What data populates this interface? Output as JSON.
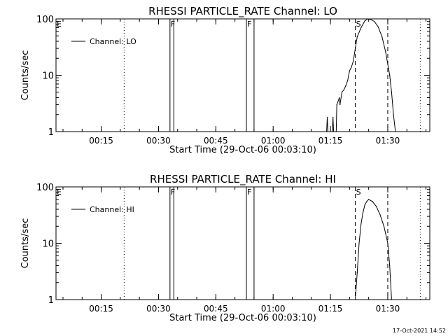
{
  "footer": {
    "timestamp": "17-Oct-2021 14:52"
  },
  "chart_data": [
    {
      "type": "line",
      "title": "RHESSI PARTICLE_RATE Channel: LO",
      "xlabel": "Start Time (29-Oct-06 00:03:10)",
      "ylabel": "Counts/sec",
      "y_scale": "log",
      "xlim": [
        "00:03:10",
        "01:41:00"
      ],
      "ylim": [
        1,
        100
      ],
      "x_ticks": [
        "00:15",
        "00:30",
        "00:45",
        "01:00",
        "01:15",
        "01:30"
      ],
      "y_ticks": [
        "1",
        "10",
        "100"
      ],
      "legend": {
        "label": "Channel: LO",
        "position": "top-left"
      },
      "flags": [
        {
          "label": "E",
          "time": "00:03:10",
          "style": "label"
        },
        {
          "label": "F",
          "time": "00:33:00",
          "end": "00:34:00",
          "style": "solid"
        },
        {
          "label": "F",
          "time": "00:53:00",
          "end": "00:55:00",
          "style": "solid"
        },
        {
          "label": "S",
          "time": "01:21:30",
          "style": "dotted"
        }
      ],
      "markers": [
        {
          "time": "00:21:00",
          "style": "dotted"
        },
        {
          "time": "01:21:30",
          "style": "dashed"
        },
        {
          "time": "01:30:00",
          "style": "dashed"
        },
        {
          "time": "01:38:30",
          "style": "dotted"
        }
      ],
      "series": [
        {
          "name": "Channel: LO",
          "x": [
            "01:14:00",
            "01:14:10",
            "01:14:20",
            "01:15:30",
            "01:15:40",
            "01:15:50",
            "01:16:30",
            "01:16:40",
            "01:17:20",
            "01:17:30",
            "01:18:00",
            "01:18:30",
            "01:19:00",
            "01:19:30",
            "01:20:00",
            "01:20:30",
            "01:21:00",
            "01:21:30",
            "01:22:00",
            "01:23:00",
            "01:24:00",
            "01:24:45",
            "01:25:30",
            "01:26:30",
            "01:27:30",
            "01:28:30",
            "01:29:30",
            "01:30:30",
            "01:31:00",
            "01:31:30",
            "01:32:00"
          ],
          "values": [
            1.0,
            1.8,
            1.0,
            1.0,
            1.8,
            1.0,
            1.0,
            3.0,
            4.0,
            3.0,
            5.0,
            5.5,
            6.5,
            8.0,
            12,
            14,
            18,
            30,
            48,
            70,
            92,
            100,
            98,
            90,
            72,
            48,
            25,
            10,
            5,
            2,
            1.0
          ]
        }
      ]
    },
    {
      "type": "line",
      "title": "RHESSI PARTICLE_RATE Channel: HI",
      "xlabel": "Start Time (29-Oct-06 00:03:10)",
      "ylabel": "Counts/sec",
      "y_scale": "log",
      "xlim": [
        "00:03:10",
        "01:41:00"
      ],
      "ylim": [
        1,
        100
      ],
      "x_ticks": [
        "00:15",
        "00:30",
        "00:45",
        "01:00",
        "01:15",
        "01:30"
      ],
      "y_ticks": [
        "1",
        "10",
        "100"
      ],
      "legend": {
        "label": "Channel: HI",
        "position": "top-left"
      },
      "flags": [
        {
          "label": "E",
          "time": "00:03:10",
          "style": "label"
        },
        {
          "label": "F",
          "time": "00:33:00",
          "end": "00:34:00",
          "style": "solid"
        },
        {
          "label": "F",
          "time": "00:53:00",
          "end": "00:55:00",
          "style": "solid"
        },
        {
          "label": "S",
          "time": "01:21:30",
          "style": "dotted"
        }
      ],
      "markers": [
        {
          "time": "00:21:00",
          "style": "dotted"
        },
        {
          "time": "01:21:30",
          "style": "dashed"
        },
        {
          "time": "01:30:00",
          "style": "dashed"
        },
        {
          "time": "01:38:30",
          "style": "dotted"
        }
      ],
      "series": [
        {
          "name": "Channel: HI",
          "x": [
            "01:21:30",
            "01:22:00",
            "01:22:30",
            "01:23:00",
            "01:23:30",
            "01:24:00",
            "01:24:30",
            "01:25:00",
            "01:26:00",
            "01:27:00",
            "01:28:00",
            "01:29:00",
            "01:30:00",
            "01:30:30",
            "01:31:00"
          ],
          "values": [
            1.0,
            3.0,
            10,
            22,
            35,
            48,
            55,
            60,
            55,
            45,
            32,
            20,
            10,
            4,
            1.0
          ]
        }
      ]
    }
  ]
}
